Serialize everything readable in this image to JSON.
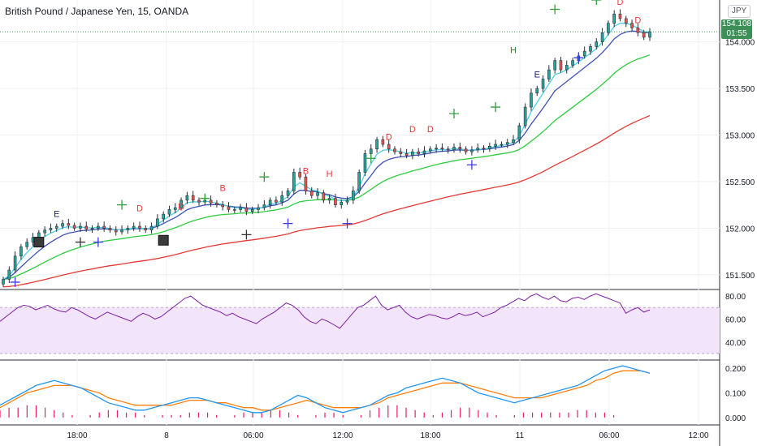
{
  "header": {
    "title": "British Pound / Japanese Yen, 15, OANDA",
    "currency": "JPY",
    "last_price": "154.108",
    "countdown": "01:55"
  },
  "colors": {
    "up": "#26a69a",
    "down": "#ef5350",
    "ema_fast": "#4dd0e1",
    "ema_mid": "#3f51b5",
    "ema_slow": "#2ecc40",
    "ema_long": "#e53935",
    "rsi": "#7b1fa2",
    "rsi_band": "#f1e4fb",
    "macd": "#2196f3",
    "signal": "#ff7f0e",
    "hist": "#e91e63",
    "marker_plus_green": "#2e9e3f",
    "marker_plus_blue": "#3b3be8",
    "marker_plus_dark": "#333333",
    "marker_letter_red": "#e53935",
    "marker_letter_blue": "#1a237e",
    "marker_letter_green": "#2e7d32"
  },
  "chart_data": [
    {
      "type": "candlestick",
      "title": "British Pound / Japanese Yen, 15, OANDA",
      "x_ticks": [
        "18:00",
        "8",
        "06:00",
        "12:00",
        "18:00",
        "11",
        "06:00",
        "12:00"
      ],
      "y_ticks": [
        "151.500",
        "152.000",
        "152.500",
        "153.000",
        "153.500",
        "154.000"
      ],
      "ylim": [
        151.35,
        154.45
      ],
      "grid": true,
      "series_close": [
        151.45,
        151.55,
        151.7,
        151.8,
        151.85,
        151.9,
        151.95,
        151.98,
        152.0,
        152.02,
        152.05,
        152.03,
        152.0,
        152.02,
        151.99,
        152.0,
        152.02,
        152.0,
        151.98,
        151.96,
        151.98,
        152.0,
        152.02,
        152.0,
        151.98,
        152.02,
        152.1,
        152.15,
        152.2,
        152.22,
        152.3,
        152.35,
        152.3,
        152.28,
        152.3,
        152.27,
        152.25,
        152.23,
        152.2,
        152.2,
        152.22,
        152.18,
        152.2,
        152.22,
        152.25,
        152.3,
        152.28,
        152.35,
        152.4,
        152.6,
        152.55,
        152.4,
        152.35,
        152.38,
        152.3,
        152.32,
        152.25,
        152.28,
        152.3,
        152.4,
        152.6,
        152.8,
        152.85,
        152.95,
        152.9,
        152.85,
        152.82,
        152.8,
        152.78,
        152.82,
        152.8,
        152.83,
        152.85,
        152.86,
        152.85,
        152.84,
        152.87,
        152.85,
        152.82,
        152.84,
        152.86,
        152.85,
        152.88,
        152.9,
        152.9,
        152.92,
        152.95,
        153.1,
        153.3,
        153.45,
        153.5,
        153.6,
        153.7,
        153.8,
        153.7,
        153.75,
        153.8,
        153.85,
        153.9,
        153.95,
        154.0,
        154.1,
        154.2,
        154.3,
        154.25,
        154.2,
        154.15,
        154.1,
        154.05,
        154.108
      ],
      "markers": [
        {
          "symbol": "+",
          "kind": "plus_blue",
          "price": 151.42
        },
        {
          "symbol": "▣",
          "kind": "box",
          "price": 151.85
        },
        {
          "symbol": "E",
          "kind": "letter_blue",
          "price": 152.12
        },
        {
          "symbol": "+",
          "kind": "plus_dark",
          "price": 151.85
        },
        {
          "symbol": "+",
          "kind": "plus_blue",
          "price": 151.85
        },
        {
          "symbol": "+",
          "kind": "plus_green",
          "price": 152.25
        },
        {
          "symbol": "D",
          "kind": "letter_red",
          "price": 152.18
        },
        {
          "symbol": "▣",
          "kind": "box",
          "price": 151.87
        },
        {
          "symbol": "D",
          "kind": "letter_red",
          "price": 152.2
        },
        {
          "symbol": "+",
          "kind": "plus_green",
          "price": 152.32
        },
        {
          "symbol": "B",
          "kind": "letter_red",
          "price": 152.4
        },
        {
          "symbol": "+",
          "kind": "plus_dark",
          "price": 151.93
        },
        {
          "symbol": "+",
          "kind": "plus_green",
          "price": 152.55
        },
        {
          "symbol": "+",
          "kind": "plus_blue",
          "price": 152.05
        },
        {
          "symbol": "B",
          "kind": "letter_red",
          "price": 152.58
        },
        {
          "symbol": "H",
          "kind": "letter_red",
          "price": 152.55
        },
        {
          "symbol": "+",
          "kind": "plus_blue",
          "price": 152.05
        },
        {
          "symbol": "+",
          "kind": "plus_green",
          "price": 152.75
        },
        {
          "symbol": "D",
          "kind": "letter_red",
          "price": 152.95
        },
        {
          "symbol": "D",
          "kind": "letter_red",
          "price": 153.03
        },
        {
          "symbol": "D",
          "kind": "letter_red",
          "price": 153.03
        },
        {
          "symbol": "+",
          "kind": "plus_green",
          "price": 153.23
        },
        {
          "symbol": "+",
          "kind": "plus_blue",
          "price": 152.68
        },
        {
          "symbol": "+",
          "kind": "plus_green",
          "price": 153.3
        },
        {
          "symbol": "H",
          "kind": "letter_green",
          "price": 153.88
        },
        {
          "symbol": "E",
          "kind": "letter_blue",
          "price": 153.62
        },
        {
          "symbol": "+",
          "kind": "plus_green",
          "price": 154.35
        },
        {
          "symbol": "+",
          "kind": "plus_blue",
          "price": 153.83
        },
        {
          "symbol": "+",
          "kind": "plus_green",
          "price": 154.45
        },
        {
          "symbol": "D",
          "kind": "letter_red",
          "price": 154.4
        },
        {
          "symbol": "D",
          "kind": "letter_red",
          "price": 154.2
        }
      ]
    },
    {
      "type": "line",
      "name": "RSI",
      "y_ticks": [
        "40.00",
        "60.00",
        "80.00"
      ],
      "band": [
        30,
        70
      ],
      "ylim": [
        25,
        85
      ],
      "values": [
        58,
        62,
        66,
        70,
        72,
        71,
        68,
        70,
        72,
        69,
        67,
        66,
        70,
        68,
        65,
        62,
        60,
        63,
        66,
        64,
        62,
        60,
        58,
        62,
        65,
        63,
        60,
        62,
        66,
        70,
        74,
        78,
        80,
        76,
        72,
        70,
        68,
        66,
        63,
        65,
        62,
        60,
        58,
        56,
        60,
        63,
        66,
        70,
        74,
        72,
        68,
        62,
        58,
        56,
        60,
        58,
        55,
        52,
        58,
        64,
        70,
        72,
        76,
        80,
        72,
        68,
        70,
        72,
        66,
        62,
        60,
        62,
        64,
        63,
        61,
        60,
        62,
        65,
        63,
        64,
        66,
        62,
        64,
        66,
        70,
        72,
        75,
        78,
        76,
        80,
        82,
        79,
        77,
        80,
        76,
        75,
        78,
        79,
        77,
        80,
        82,
        80,
        78,
        76,
        74,
        65,
        68,
        70,
        66,
        68
      ]
    },
    {
      "type": "line",
      "name": "MACD",
      "y_ticks": [
        "0.000",
        "0.100",
        "0.200"
      ],
      "ylim": [
        -0.03,
        0.23
      ],
      "macd": [
        0.05,
        0.07,
        0.09,
        0.11,
        0.13,
        0.14,
        0.15,
        0.14,
        0.13,
        0.12,
        0.1,
        0.08,
        0.06,
        0.05,
        0.04,
        0.03,
        0.03,
        0.04,
        0.05,
        0.06,
        0.07,
        0.08,
        0.08,
        0.07,
        0.06,
        0.05,
        0.04,
        0.03,
        0.02,
        0.02,
        0.03,
        0.05,
        0.07,
        0.09,
        0.08,
        0.06,
        0.04,
        0.03,
        0.02,
        0.03,
        0.04,
        0.05,
        0.07,
        0.09,
        0.1,
        0.12,
        0.13,
        0.14,
        0.15,
        0.16,
        0.15,
        0.14,
        0.12,
        0.1,
        0.09,
        0.08,
        0.07,
        0.06,
        0.07,
        0.08,
        0.09,
        0.1,
        0.11,
        0.12,
        0.13,
        0.15,
        0.17,
        0.19,
        0.2,
        0.21,
        0.2,
        0.19,
        0.18
      ],
      "signal": [
        0.04,
        0.06,
        0.08,
        0.1,
        0.11,
        0.12,
        0.13,
        0.13,
        0.13,
        0.12,
        0.11,
        0.1,
        0.08,
        0.07,
        0.06,
        0.05,
        0.05,
        0.05,
        0.05,
        0.05,
        0.06,
        0.07,
        0.07,
        0.07,
        0.06,
        0.06,
        0.05,
        0.04,
        0.04,
        0.03,
        0.03,
        0.04,
        0.05,
        0.06,
        0.07,
        0.06,
        0.05,
        0.04,
        0.04,
        0.04,
        0.04,
        0.05,
        0.06,
        0.08,
        0.09,
        0.1,
        0.11,
        0.12,
        0.13,
        0.14,
        0.14,
        0.14,
        0.13,
        0.12,
        0.11,
        0.1,
        0.09,
        0.08,
        0.08,
        0.08,
        0.08,
        0.09,
        0.1,
        0.11,
        0.12,
        0.13,
        0.15,
        0.16,
        0.18,
        0.19,
        0.19,
        0.19,
        0.18
      ],
      "hist": [
        0.03,
        0.04,
        0.04,
        0.05,
        0.05,
        0.04,
        0.03,
        0.02,
        0.01,
        0.0,
        0.01,
        0.02,
        0.03,
        0.03,
        0.02,
        0.02,
        0.01,
        0.0,
        0.01,
        0.01,
        0.01,
        0.02,
        0.02,
        0.02,
        0.01,
        0.0,
        0.01,
        0.02,
        0.02,
        0.02,
        0.03,
        0.03,
        0.02,
        0.01,
        0.0,
        0.01,
        0.02,
        0.02,
        0.01,
        0.0,
        0.01,
        0.03,
        0.04,
        0.05,
        0.05,
        0.04,
        0.03,
        0.02,
        0.01,
        0.02,
        0.03,
        0.04,
        0.04,
        0.03,
        0.02,
        0.01,
        0.0,
        0.01,
        0.02,
        0.02,
        0.02,
        0.02,
        0.02,
        0.02,
        0.03,
        0.03,
        0.02,
        0.02,
        0.01,
        0.0,
        0.0,
        0.0,
        0.0
      ]
    }
  ]
}
